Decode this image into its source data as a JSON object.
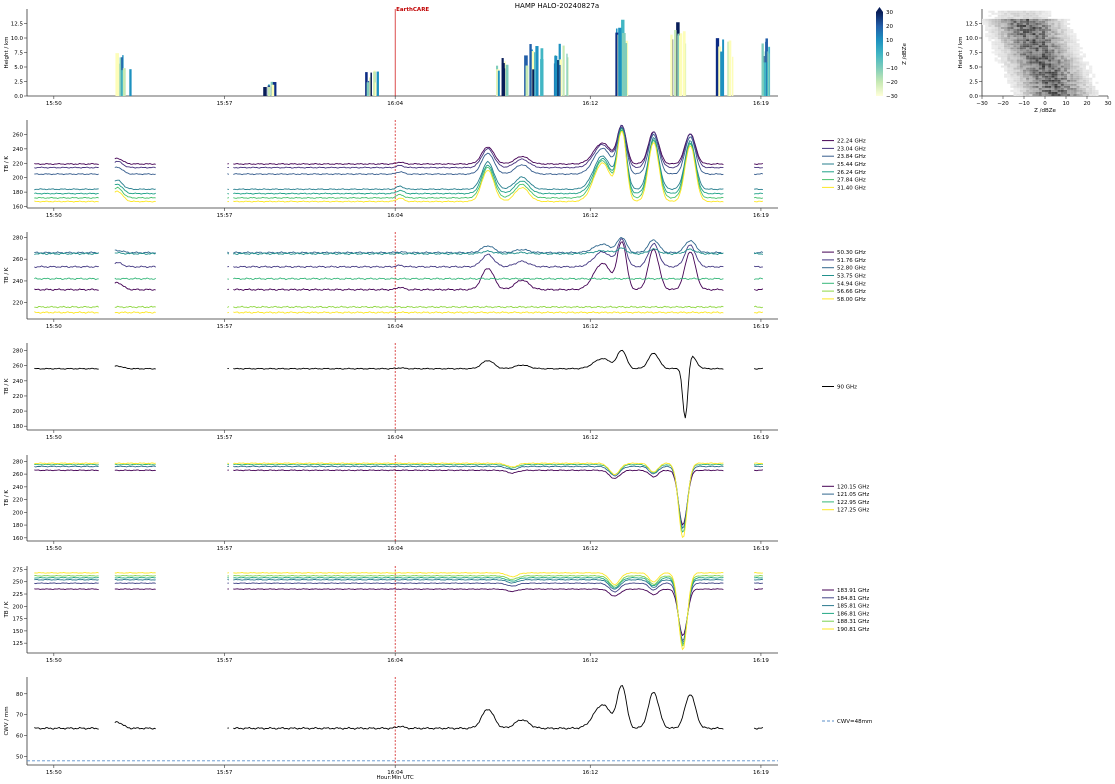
{
  "title": "HAMP HALO-20240827a",
  "earthcare_label": "EarthCARE",
  "x_axis": {
    "xlabel": "Hour:Min UTC",
    "ticks": [
      "15:50",
      "15:57",
      "16:04",
      "16:12",
      "16:19"
    ],
    "tick_minutes": [
      0,
      7,
      14,
      22,
      29
    ]
  },
  "colors": {
    "earthcare_line": "#cc0000",
    "cwv_line": "#5b8fc9",
    "axis": "#333333"
  },
  "chart_data": [
    {
      "type": "heatmap",
      "name": "radar_curtain",
      "ylabel": "Height / km",
      "yticks": [
        "0.0",
        "2.5",
        "5.0",
        "7.5",
        "10.0",
        "12.5"
      ],
      "ylim": [
        0,
        15
      ],
      "colorbar": {
        "label": "Z /dBZe",
        "ticks": [
          "30",
          "20",
          "10",
          "0",
          "−10",
          "−20",
          "−30"
        ],
        "range": [
          -30,
          30
        ]
      },
      "cells": [
        {
          "t": 2.8,
          "top": 7.5,
          "bottom": 0
        },
        {
          "t": 8.8,
          "top": 2.5,
          "bottom": 0
        },
        {
          "t": 13.0,
          "top": 4.5,
          "bottom": 0
        },
        {
          "t": 18.4,
          "top": 8.5,
          "bottom": 0
        },
        {
          "t": 19.6,
          "top": 9.0,
          "bottom": 0
        },
        {
          "t": 20.8,
          "top": 9.5,
          "bottom": 0
        },
        {
          "t": 23.2,
          "top": 13.5,
          "bottom": 0
        },
        {
          "t": 25.6,
          "top": 14.5,
          "bottom": 0
        },
        {
          "t": 27.5,
          "top": 10.0,
          "bottom": 0
        },
        {
          "t": 29.2,
          "top": 10.5,
          "bottom": 0
        }
      ]
    },
    {
      "type": "heatmap",
      "name": "cfad",
      "xlabel": "Z /dBZe",
      "ylabel": "Height / km",
      "xticks": [
        "−30",
        "−20",
        "−10",
        "0",
        "10",
        "20",
        "30"
      ],
      "yticks": [
        "0.0",
        "2.5",
        "5.0",
        "7.5",
        "10.0",
        "12.5"
      ],
      "xlim": [
        -30,
        30
      ],
      "ylim": [
        0,
        15
      ]
    },
    {
      "type": "line",
      "name": "k_band",
      "ylabel": "TB / K",
      "yticks": [
        "160",
        "180",
        "200",
        "220",
        "240",
        "260"
      ],
      "ylim": [
        158,
        280
      ],
      "series": [
        {
          "name": "22.24 GHz",
          "color": "#440154",
          "base": 219,
          "peak": 272
        },
        {
          "name": "23.04 GHz",
          "color": "#46327e",
          "base": 214,
          "peak": 272
        },
        {
          "name": "23.84 GHz",
          "color": "#365c8d",
          "base": 205,
          "peak": 270
        },
        {
          "name": "25.44 GHz",
          "color": "#277f8e",
          "base": 184,
          "peak": 268
        },
        {
          "name": "26.24 GHz",
          "color": "#1fa187",
          "base": 178,
          "peak": 266
        },
        {
          "name": "27.84 GHz",
          "color": "#4ac16d",
          "base": 172,
          "peak": 266
        },
        {
          "name": "31.40 GHz",
          "color": "#fde725",
          "base": 167,
          "peak": 264
        }
      ]
    },
    {
      "type": "line",
      "name": "v_band",
      "ylabel": "TB / K",
      "yticks": [
        "220",
        "240",
        "260",
        "280"
      ],
      "ylim": [
        205,
        285
      ],
      "series": [
        {
          "name": "50.30 GHz",
          "color": "#440154",
          "base": 232,
          "peak": 276
        },
        {
          "name": "51.76 GHz",
          "color": "#443983",
          "base": 253,
          "peak": 278
        },
        {
          "name": "52.80 GHz",
          "color": "#31688e",
          "base": 266,
          "peak": 280
        },
        {
          "name": "53.75 GHz",
          "color": "#21918c",
          "base": 265,
          "peak": 270
        },
        {
          "name": "54.94 GHz",
          "color": "#35b779",
          "base": 242,
          "peak": 242
        },
        {
          "name": "56.66 GHz",
          "color": "#90d743",
          "base": 216,
          "peak": 216
        },
        {
          "name": "58.00 GHz",
          "color": "#fde725",
          "base": 211,
          "peak": 211
        }
      ]
    },
    {
      "type": "line",
      "name": "w_band",
      "ylabel": "TB / K",
      "yticks": [
        "180",
        "200",
        "220",
        "240",
        "260",
        "280"
      ],
      "ylim": [
        175,
        290
      ],
      "series": [
        {
          "name": "90 GHz",
          "color": "#000000",
          "base": 256,
          "peak": 283,
          "min": 178
        }
      ]
    },
    {
      "type": "line",
      "name": "f_band",
      "ylabel": "TB / K",
      "yticks": [
        "160",
        "180",
        "200",
        "220",
        "240",
        "260",
        "280"
      ],
      "ylim": [
        155,
        290
      ],
      "series": [
        {
          "name": "120.15 GHz",
          "color": "#440154",
          "base": 266,
          "min": 180
        },
        {
          "name": "121.05 GHz",
          "color": "#31688e",
          "base": 272,
          "min": 175
        },
        {
          "name": "122.95 GHz",
          "color": "#35b779",
          "base": 275,
          "min": 168
        },
        {
          "name": "127.25 GHz",
          "color": "#fde725",
          "base": 277,
          "min": 160
        }
      ]
    },
    {
      "type": "line",
      "name": "g_band",
      "ylabel": "TB / K",
      "yticks": [
        "125",
        "150",
        "175",
        "200",
        "225",
        "250",
        "275"
      ],
      "ylim": [
        105,
        282
      ],
      "series": [
        {
          "name": "183.91 GHz",
          "color": "#440154",
          "base": 235,
          "min": 140
        },
        {
          "name": "184.81 GHz",
          "color": "#414487",
          "base": 247,
          "min": 130
        },
        {
          "name": "185.81 GHz",
          "color": "#2a788e",
          "base": 254,
          "min": 125
        },
        {
          "name": "186.81 GHz",
          "color": "#22a884",
          "base": 258,
          "min": 122
        },
        {
          "name": "188.31 GHz",
          "color": "#7ad151",
          "base": 262,
          "min": 118
        },
        {
          "name": "190.81 GHz",
          "color": "#fde725",
          "base": 268,
          "min": 112
        }
      ]
    },
    {
      "type": "line",
      "name": "cwv",
      "ylabel": "CWV / mm",
      "yticks": [
        "50",
        "60",
        "70",
        "80"
      ],
      "ylim": [
        46,
        88
      ],
      "series": [
        {
          "name": "",
          "color": "#000000",
          "base": 63.5,
          "peak": 85
        }
      ],
      "reference": {
        "name": "CWV=48mm",
        "value": 48
      }
    }
  ]
}
